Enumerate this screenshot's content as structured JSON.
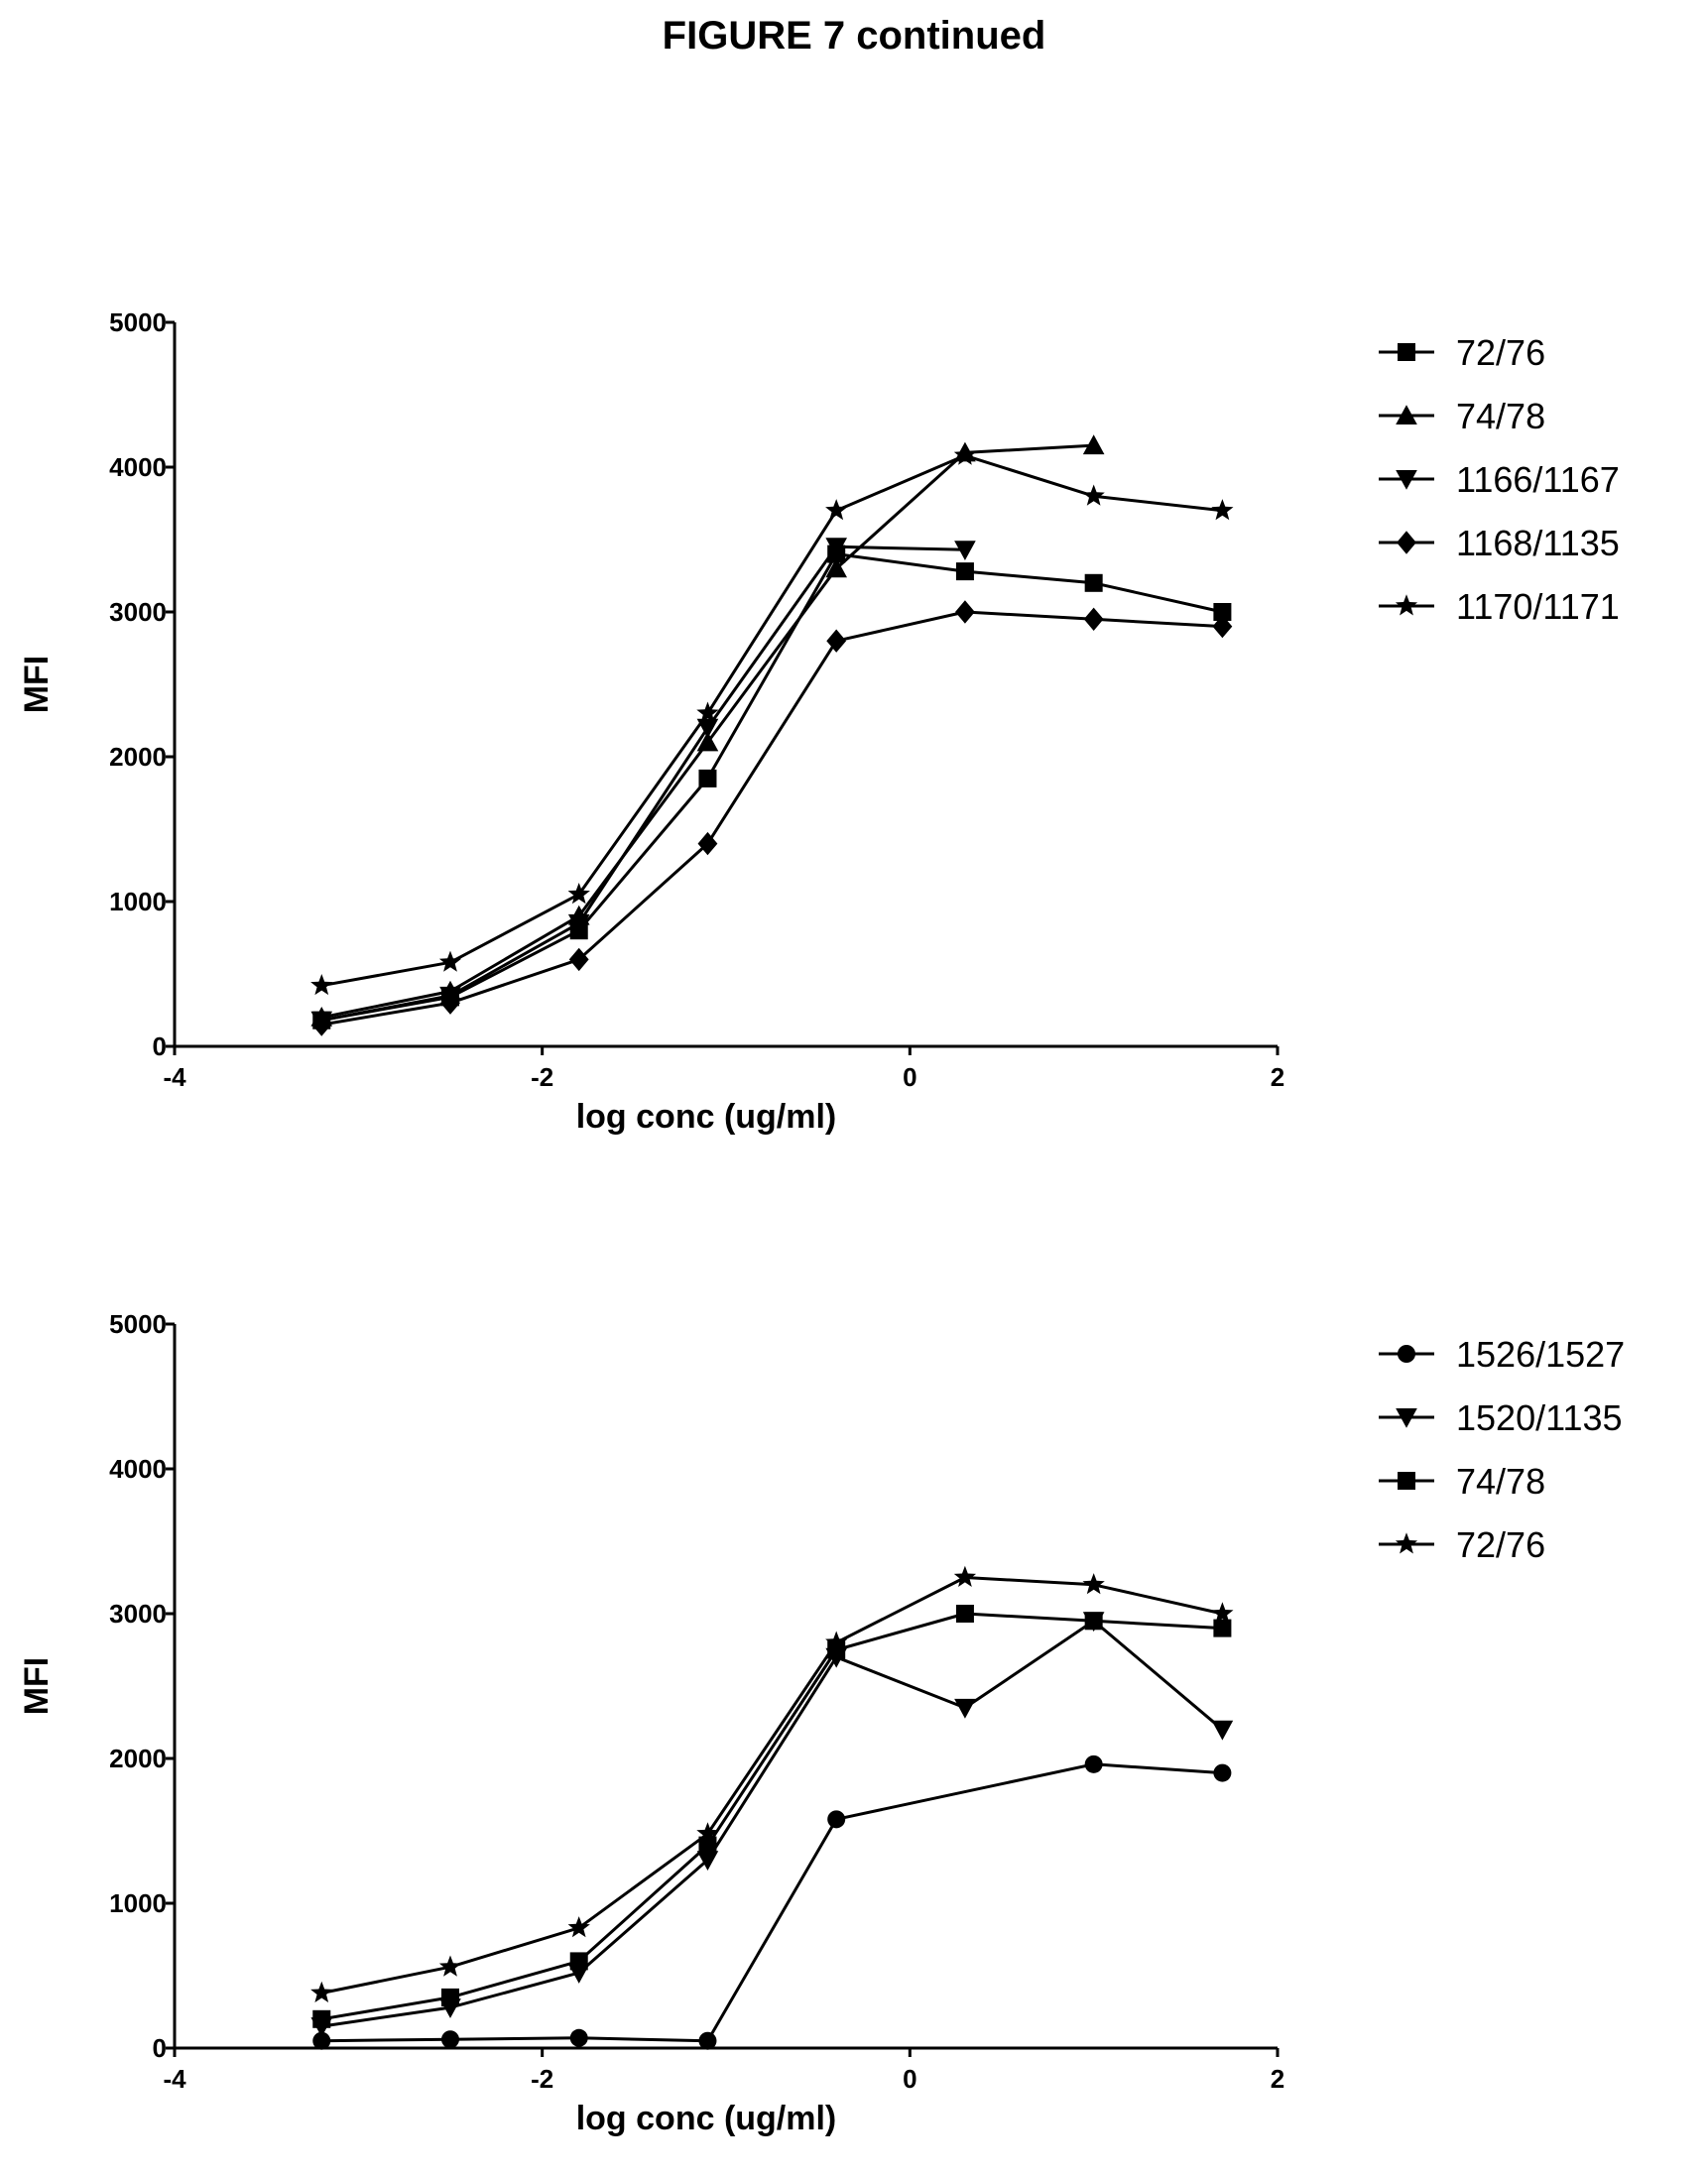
{
  "title": "FIGURE 7 continued",
  "chart_data": [
    {
      "type": "line",
      "title": "",
      "xlabel": "log conc (ug/ml)",
      "ylabel": "MFI",
      "xlim": [
        -4,
        2
      ],
      "ylim": [
        0,
        5000
      ],
      "xticks": [
        -4,
        -2,
        0,
        2
      ],
      "yticks": [
        0,
        1000,
        2000,
        3000,
        4000,
        5000
      ],
      "legend_position": "right",
      "series": [
        {
          "name": "72/76",
          "marker": "square",
          "x": [
            -3.2,
            -2.5,
            -1.8,
            -1.1,
            -0.4,
            0.3,
            1.0,
            1.7
          ],
          "y": [
            180,
            340,
            800,
            1850,
            3400,
            3280,
            3200,
            3000
          ]
        },
        {
          "name": "74/78",
          "marker": "triangle-up",
          "x": [
            -3.2,
            -2.5,
            -1.8,
            -1.1,
            -0.4,
            0.3,
            1.0
          ],
          "y": [
            200,
            380,
            900,
            2100,
            3300,
            4100,
            4150
          ]
        },
        {
          "name": "1166/1167",
          "marker": "triangle-down",
          "x": [
            -3.2,
            -2.5,
            -1.8,
            -1.1,
            -0.4,
            0.3
          ],
          "y": [
            180,
            350,
            850,
            2200,
            3450,
            3430
          ]
        },
        {
          "name": "1168/1135",
          "marker": "diamond",
          "x": [
            -3.2,
            -2.5,
            -1.8,
            -1.1,
            -0.4,
            0.3,
            1.0,
            1.7
          ],
          "y": [
            150,
            300,
            600,
            1400,
            2800,
            3000,
            2950,
            2900
          ]
        },
        {
          "name": "1170/1171",
          "marker": "star",
          "x": [
            -3.2,
            -2.5,
            -1.8,
            -1.1,
            -0.4,
            0.3,
            1.0,
            1.7
          ],
          "y": [
            420,
            580,
            1050,
            2300,
            3700,
            4080,
            3800,
            3700
          ]
        }
      ]
    },
    {
      "type": "line",
      "title": "",
      "xlabel": "log conc (ug/ml)",
      "ylabel": "MFI",
      "xlim": [
        -4,
        2
      ],
      "ylim": [
        0,
        5000
      ],
      "xticks": [
        -4,
        -2,
        0,
        2
      ],
      "yticks": [
        0,
        1000,
        2000,
        3000,
        4000,
        5000
      ],
      "legend_position": "right",
      "series": [
        {
          "name": "1526/1527",
          "marker": "circle",
          "x": [
            -3.2,
            -2.5,
            -1.8,
            -1.1,
            -0.4,
            1.0,
            1.7
          ],
          "y": [
            50,
            60,
            70,
            50,
            1580,
            1960,
            1900
          ]
        },
        {
          "name": "1520/1135",
          "marker": "triangle-down",
          "x": [
            -3.2,
            -2.5,
            -1.8,
            -1.1,
            -0.4,
            0.3,
            1.0,
            1.7
          ],
          "y": [
            150,
            280,
            520,
            1300,
            2700,
            2350,
            2950,
            2200
          ]
        },
        {
          "name": "74/78",
          "marker": "square",
          "x": [
            -3.2,
            -2.5,
            -1.8,
            -1.1,
            -0.4,
            0.3,
            1.0,
            1.7
          ],
          "y": [
            200,
            350,
            600,
            1400,
            2750,
            3000,
            2950,
            2900
          ]
        },
        {
          "name": "72/76",
          "marker": "star",
          "x": [
            -3.2,
            -2.5,
            -1.8,
            -1.1,
            -0.4,
            0.3,
            1.0,
            1.7
          ],
          "y": [
            380,
            560,
            830,
            1480,
            2800,
            3250,
            3200,
            3000
          ]
        }
      ]
    }
  ]
}
